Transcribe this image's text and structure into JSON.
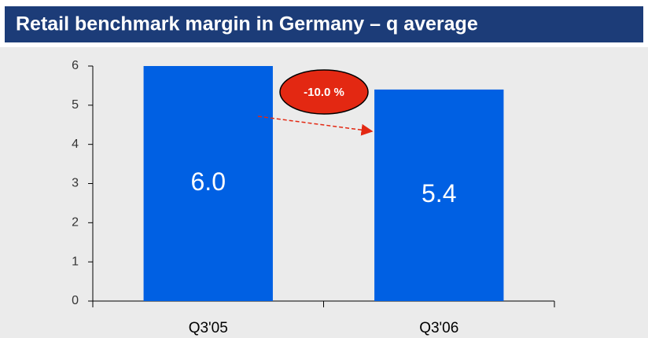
{
  "chart_data": {
    "type": "bar",
    "title": "Retail benchmark margin in Germany – q average",
    "categories": [
      "Q3'05",
      "Q3'06"
    ],
    "values": [
      6.0,
      5.4
    ],
    "value_labels": [
      "6.0",
      "5.4"
    ],
    "color": "#0060e3",
    "ylim": [
      0,
      6
    ],
    "yticks": [
      0,
      1,
      2,
      3,
      4,
      5,
      6
    ],
    "annotation": "-10.0 %",
    "annotation_color": "#e32812",
    "grid": false
  }
}
